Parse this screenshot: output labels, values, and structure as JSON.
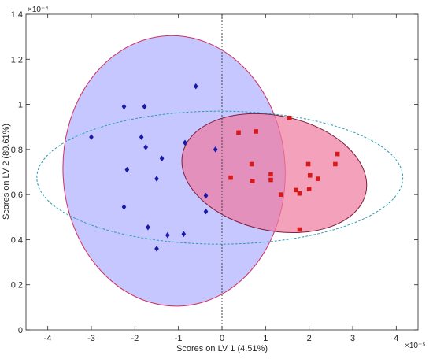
{
  "chart_data": {
    "type": "scatter",
    "title": "",
    "xlabel": "Scores on LV 1 (4.51%)",
    "ylabel": "Scores on LV 2 (89.61%)",
    "x_exponent": "×10⁻⁵",
    "y_exponent": "×10⁻⁴",
    "xlim": [
      -4.5,
      4.5
    ],
    "ylim": [
      0,
      1.4
    ],
    "xticks": [
      -4,
      -3,
      -2,
      -1,
      0,
      1,
      2,
      3,
      4
    ],
    "yticks": [
      0,
      0.2,
      0.4,
      0.6,
      0.8,
      1,
      1.2,
      1.4
    ],
    "xtick_labels": [
      "-4",
      "-3",
      "-2",
      "-1",
      "0",
      "1",
      "2",
      "3",
      "4"
    ],
    "ytick_labels": [
      "0",
      "0.2",
      "0.4",
      "0.6",
      "0.8",
      "1",
      "1.2",
      "1.4"
    ],
    "grid": false,
    "reference_lines": {
      "vertical_x": 0,
      "style": "dotted"
    },
    "colors": {
      "series1": "#1a1aa8",
      "series2": "#d61a1a",
      "ellipse1_fill": "#b4b4ff",
      "ellipse1_stroke": "#d03060",
      "ellipse2_fill": "#f07aa0",
      "ellipse2_stroke": "#7a2040",
      "ellipse3_stroke": "#2a9cb4"
    },
    "series": [
      {
        "marker": "diamond",
        "points": [
          [
            -0.6,
            1.08
          ],
          [
            -2.25,
            0.99
          ],
          [
            -1.78,
            0.99
          ],
          [
            -3.0,
            0.855
          ],
          [
            -1.85,
            0.855
          ],
          [
            -1.75,
            0.81
          ],
          [
            -0.85,
            0.83
          ],
          [
            -1.38,
            0.76
          ],
          [
            -2.18,
            0.71
          ],
          [
            -1.5,
            0.67
          ],
          [
            -0.15,
            0.8
          ],
          [
            -0.37,
            0.595
          ],
          [
            -0.37,
            0.525
          ],
          [
            -2.25,
            0.545
          ],
          [
            -1.7,
            0.455
          ],
          [
            -1.25,
            0.42
          ],
          [
            -0.88,
            0.425
          ],
          [
            -1.5,
            0.36
          ]
        ]
      },
      {
        "marker": "square",
        "points": [
          [
            1.55,
            0.94
          ],
          [
            0.38,
            0.875
          ],
          [
            0.78,
            0.88
          ],
          [
            2.65,
            0.78
          ],
          [
            0.68,
            0.735
          ],
          [
            1.98,
            0.735
          ],
          [
            2.6,
            0.735
          ],
          [
            1.12,
            0.69
          ],
          [
            2.02,
            0.685
          ],
          [
            0.2,
            0.675
          ],
          [
            1.12,
            0.665
          ],
          [
            2.2,
            0.67
          ],
          [
            0.7,
            0.66
          ],
          [
            2.0,
            0.625
          ],
          [
            1.7,
            0.62
          ],
          [
            1.78,
            0.605
          ],
          [
            1.35,
            0.6
          ],
          [
            1.78,
            0.445
          ]
        ]
      }
    ],
    "ellipses": [
      {
        "name": "",
        "cx": -1.1,
        "cy": 0.705,
        "rx": 2.55,
        "ry": 0.6,
        "angle_deg": 0,
        "rotation_screen_deg": -3
      },
      {
        "name": "",
        "cx": 1.2,
        "cy": 0.695,
        "rx": 2.15,
        "ry": 0.255,
        "angle_deg": 0,
        "rotation_screen_deg": 12
      },
      {
        "name": "",
        "cx": -0.05,
        "cy": 0.675,
        "rx": 4.2,
        "ry": 0.295,
        "angle_deg": 0,
        "rotation_screen_deg": 0
      }
    ]
  }
}
